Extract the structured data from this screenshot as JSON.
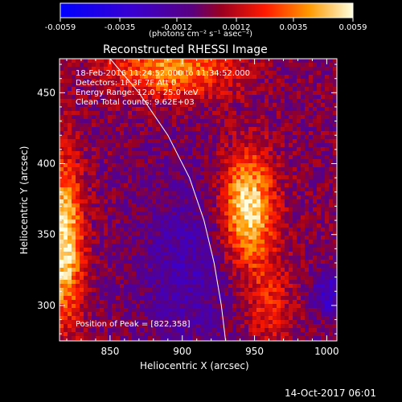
{
  "chart_data": {
    "type": "heatmap",
    "title": "Reconstructed RHESSI Image",
    "xlabel": "Heliocentric X (arcsec)",
    "ylabel": "Heliocentric Y (arcsec)",
    "xlim": [
      815,
      1007
    ],
    "ylim": [
      275,
      474
    ],
    "x_ticks": [
      850,
      900,
      950,
      1000
    ],
    "y_ticks": [
      300,
      350,
      400,
      450
    ],
    "colorbar": {
      "label_html": "(photons cm⁻² s⁻¹ asec⁻²)",
      "ticks": [
        -0.0059,
        -0.0035,
        -0.0012,
        0.0012,
        0.0035,
        0.0059
      ],
      "tick_labels": [
        "-0.0059",
        "-0.0035",
        "-0.0012",
        "0.0012",
        "0.0035",
        "0.0059"
      ],
      "range": [
        -0.0059,
        0.0059
      ]
    },
    "info_lines": [
      "18-Feb-2016 11:24:52.000 to 11:34:52.000",
      "Detectors: 1F 3F 7F  Att 0",
      "Energy Range: 12.0 - 25.0 keV",
      "Clean      Total counts: 9.62E+03"
    ],
    "peak_label": "Position of Peak = [822,358]",
    "sources": [
      {
        "x": 945,
        "y": 368,
        "sx": 13,
        "sy": 28,
        "amp": 0.0059
      },
      {
        "x": 818,
        "y": 345,
        "sx": 9,
        "sy": 40,
        "amp": 0.0058
      },
      {
        "x": 893,
        "y": 466,
        "sx": 30,
        "sy": 14,
        "amp": 0.004
      },
      {
        "x": 960,
        "y": 300,
        "sx": 12,
        "sy": 22,
        "amp": 0.0022
      },
      {
        "x": 905,
        "y": 330,
        "sx": 25,
        "sy": 45,
        "amp": -0.0018
      },
      {
        "x": 1002,
        "y": 308,
        "sx": 8,
        "sy": 10,
        "amp": -0.003
      }
    ],
    "limb_curve": [
      [
        850,
        474
      ],
      [
        870,
        450
      ],
      [
        890,
        420
      ],
      [
        905,
        390
      ],
      [
        915,
        360
      ],
      [
        922,
        330
      ],
      [
        927,
        300
      ],
      [
        930,
        275
      ]
    ]
  },
  "footer": {
    "timestamp": "14-Oct-2017 06:01"
  }
}
